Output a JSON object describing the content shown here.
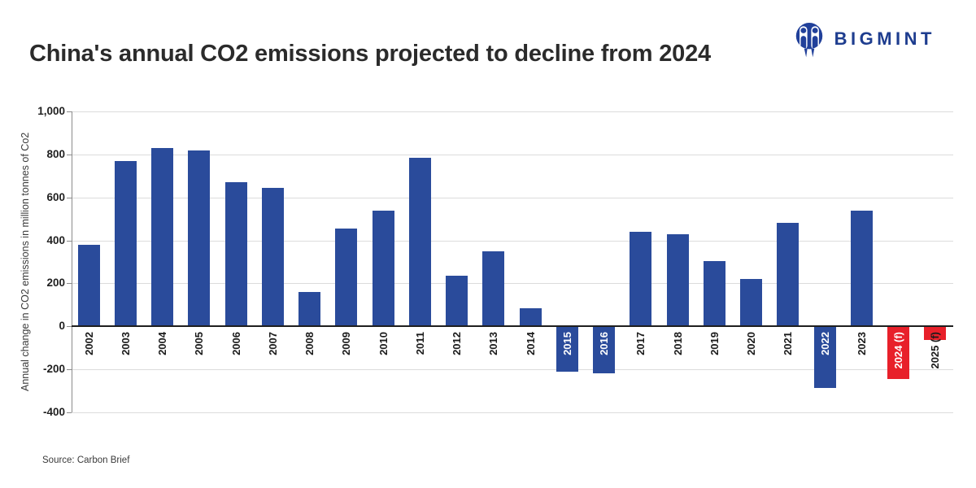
{
  "header": {
    "title": "China's annual CO2 emissions projected to decline from 2024",
    "brand": "BIGMINT"
  },
  "source": {
    "label": "Source: Carbon Brief"
  },
  "colors": {
    "bar_blue": "#2a4b9b",
    "bar_red": "#e8202a",
    "brand_blue": "#21409a",
    "grid": "#dcdcdc",
    "zero_line": "#1f1f1f",
    "axis": "#8c8c8c",
    "title_text": "#2b2b2b",
    "tick_text": "#1f1f1f",
    "white_label": "#ffffff"
  },
  "chart_data": {
    "type": "bar",
    "title": "China's annual CO2 emissions projected to decline from 2024",
    "xlabel": "",
    "ylabel": "Annual change in CO2 emissions in million tonnes of Co2",
    "ylim": [
      -400,
      1000
    ],
    "grid": true,
    "legend": "none",
    "yticks": [
      {
        "value": 1000,
        "label": "1,000"
      },
      {
        "value": 800,
        "label": "800"
      },
      {
        "value": 600,
        "label": "600"
      },
      {
        "value": 400,
        "label": "400"
      },
      {
        "value": 200,
        "label": "200"
      },
      {
        "value": 0,
        "label": "0"
      },
      {
        "value": -200,
        "label": "-200"
      },
      {
        "value": -400,
        "label": "-400"
      }
    ],
    "bars": [
      {
        "label": "2002",
        "value": 380,
        "forecast": false
      },
      {
        "label": "2003",
        "value": 770,
        "forecast": false
      },
      {
        "label": "2004",
        "value": 830,
        "forecast": false
      },
      {
        "label": "2005",
        "value": 820,
        "forecast": false
      },
      {
        "label": "2006",
        "value": 670,
        "forecast": false
      },
      {
        "label": "2007",
        "value": 645,
        "forecast": false
      },
      {
        "label": "2008",
        "value": 160,
        "forecast": false
      },
      {
        "label": "2009",
        "value": 455,
        "forecast": false
      },
      {
        "label": "2010",
        "value": 540,
        "forecast": false
      },
      {
        "label": "2011",
        "value": 785,
        "forecast": false
      },
      {
        "label": "2012",
        "value": 235,
        "forecast": false
      },
      {
        "label": "2013",
        "value": 350,
        "forecast": false
      },
      {
        "label": "2014",
        "value": 85,
        "forecast": false
      },
      {
        "label": "2015",
        "value": -210,
        "forecast": false
      },
      {
        "label": "2016",
        "value": -220,
        "forecast": false
      },
      {
        "label": "2017",
        "value": 440,
        "forecast": false
      },
      {
        "label": "2018",
        "value": 430,
        "forecast": false
      },
      {
        "label": "2019",
        "value": 305,
        "forecast": false
      },
      {
        "label": "2020",
        "value": 220,
        "forecast": false
      },
      {
        "label": "2021",
        "value": 480,
        "forecast": false
      },
      {
        "label": "2022",
        "value": -285,
        "forecast": false
      },
      {
        "label": "2023",
        "value": 540,
        "forecast": false
      },
      {
        "label": "2024 (f)",
        "value": -245,
        "forecast": true
      },
      {
        "label": "2025 (f)",
        "value": -65,
        "forecast": true
      }
    ],
    "white_label_bars": [
      "2015",
      "2016",
      "2022",
      "2024 (f)"
    ]
  }
}
